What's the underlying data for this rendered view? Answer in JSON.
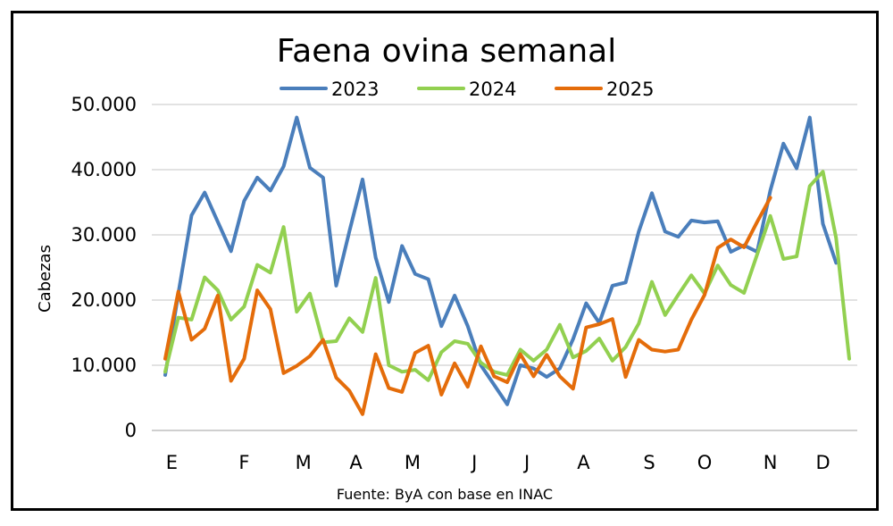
{
  "chart_data": {
    "type": "line",
    "title": "Faena ovina semanal",
    "ylabel": "Cabezas",
    "xlabel": "",
    "source": "Fuente: ByA con base en INAC",
    "ylim": [
      0,
      50000
    ],
    "yticks": [
      0,
      10000,
      20000,
      30000,
      40000,
      50000
    ],
    "ytick_labels": [
      "0",
      "10.000",
      "20.000",
      "30.000",
      "40.000",
      "50.000"
    ],
    "xlim": [
      1,
      53
    ],
    "month_labels": [
      {
        "label": "E",
        "week": 1.5
      },
      {
        "label": "F",
        "week": 7
      },
      {
        "label": "M",
        "week": 11.5
      },
      {
        "label": "A",
        "week": 15.5
      },
      {
        "label": "M",
        "week": 19.8
      },
      {
        "label": "J",
        "week": 24.5
      },
      {
        "label": "J",
        "week": 28.5
      },
      {
        "label": "A",
        "week": 32.8
      },
      {
        "label": "S",
        "week": 37.8
      },
      {
        "label": "O",
        "week": 42
      },
      {
        "label": "N",
        "week": 47
      },
      {
        "label": "D",
        "week": 51
      }
    ],
    "grid": true,
    "legend_position": "top",
    "series": [
      {
        "name": "2023",
        "color": "#4a7ebb",
        "start_week": 1,
        "values": [
          8500,
          21000,
          33000,
          36500,
          32000,
          27500,
          35200,
          38800,
          36800,
          40500,
          48000,
          40300,
          38800,
          22200,
          30500,
          38500,
          26500,
          19700,
          28300,
          24000,
          23200,
          16000,
          20700,
          16000,
          10000,
          7000,
          4000,
          10000,
          9500,
          8200,
          9500,
          14000,
          19500,
          16500,
          22200,
          22700,
          30500,
          36400,
          30500,
          29700,
          32200,
          31900,
          32100,
          27400,
          28400,
          27400,
          36800,
          44000,
          40200,
          48000,
          31700,
          25700
        ]
      },
      {
        "name": "2024",
        "color": "#92d050",
        "start_week": 1,
        "values": [
          9000,
          17300,
          17000,
          23500,
          21500,
          17000,
          19000,
          25400,
          24200,
          31200,
          18200,
          21000,
          13500,
          13700,
          17200,
          15100,
          23400,
          10000,
          9000,
          9300,
          7700,
          12000,
          13700,
          13300,
          10400,
          9000,
          8500,
          12400,
          10700,
          12400,
          16200,
          11200,
          12200,
          14100,
          10700,
          12800,
          16400,
          22800,
          17700,
          20800,
          23800,
          21000,
          25300,
          22300,
          21100,
          27000,
          32900,
          26300,
          26700,
          37500,
          39700,
          29500,
          11000
        ]
      },
      {
        "name": "2025",
        "color": "#e46c0a",
        "start_week": 1,
        "values": [
          11000,
          21300,
          13900,
          15600,
          20700,
          7600,
          11000,
          21500,
          18600,
          8800,
          9900,
          11400,
          13900,
          8100,
          6100,
          2500,
          11700,
          6500,
          5900,
          11900,
          13000,
          5500,
          10300,
          6700,
          12900,
          8300,
          7400,
          11700,
          8300,
          11600,
          8300,
          6400,
          15800,
          16300,
          17100,
          8200,
          13900,
          12400,
          12100,
          12400,
          17000,
          20800,
          28000,
          29300,
          28100,
          32000,
          35700
        ]
      }
    ]
  }
}
